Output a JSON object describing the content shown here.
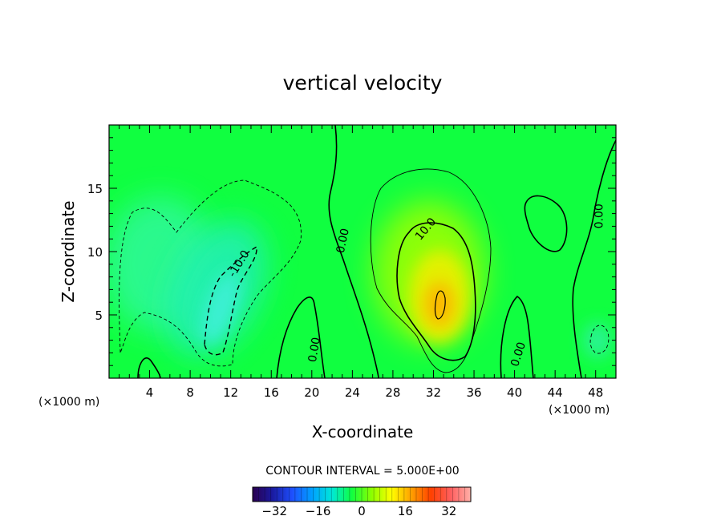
{
  "chart_data": {
    "type": "heatmap",
    "title": "vertical velocity",
    "xlabel": "X-coordinate",
    "ylabel": "Z-coordinate",
    "x_unit": "(×1000 m)",
    "x_unit_right": "(×1000 m)",
    "xlim": [
      0,
      50
    ],
    "ylim": [
      0,
      20
    ],
    "x_ticks": [
      4,
      8,
      12,
      16,
      20,
      24,
      28,
      32,
      36,
      40,
      44,
      48
    ],
    "y_ticks": [
      5,
      10,
      15
    ],
    "contour_interval_text": "CONTOUR INTERVAL = 5.000E+00",
    "contour_labels": [
      {
        "text": "-10.0",
        "x": 13.1,
        "y": 8.9
      },
      {
        "text": "0.00",
        "x": 23.4,
        "y": 10.8
      },
      {
        "text": "10.0",
        "x": 31.5,
        "y": 11.6
      },
      {
        "text": "0.00",
        "x": 20.6,
        "y": 2.2
      },
      {
        "text": "0.00",
        "x": 40.7,
        "y": 1.8
      },
      {
        "text": "0.00",
        "x": 48.7,
        "y": 12.8
      }
    ],
    "colorbar": {
      "range": [
        -40,
        40
      ],
      "ticks": [
        -32,
        -16,
        0,
        16,
        32
      ],
      "colors": [
        "#2a0050",
        "#1a1aa0",
        "#1e50ff",
        "#00a0ff",
        "#00e8d8",
        "#10ff40",
        "#8cff00",
        "#ffff00",
        "#ffa000",
        "#ff4000",
        "#ff6060",
        "#ffb0a8"
      ]
    },
    "field_features": [
      {
        "kind": "downdraft",
        "x": 11.5,
        "y": 5.0,
        "peak": -12
      },
      {
        "kind": "updraft",
        "x": 32.2,
        "y": 6.5,
        "peak": 22
      }
    ]
  }
}
